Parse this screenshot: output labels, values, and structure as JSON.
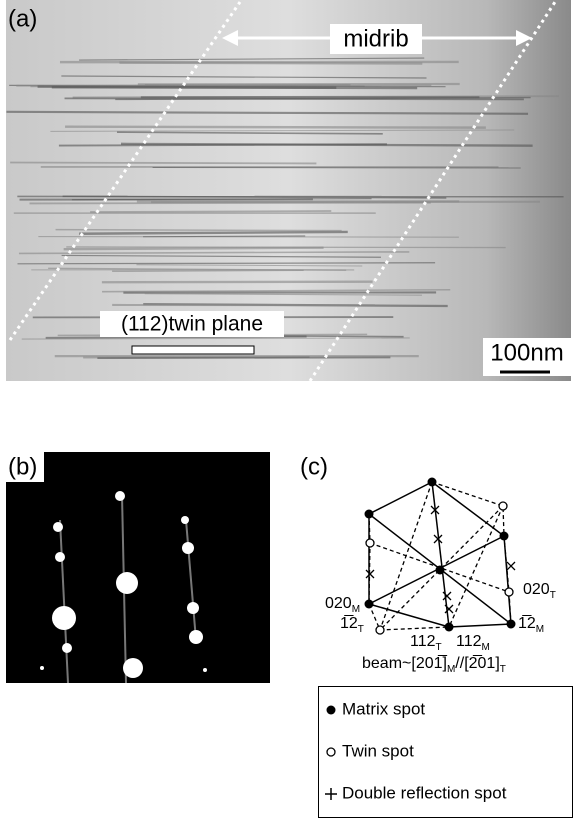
{
  "panel_a": {
    "label": "(a)",
    "midrib": "midrib",
    "twin_plane": "(112)twin plane",
    "scale_bar": "100nm"
  },
  "panel_b": {
    "label": "(b)"
  },
  "panel_c": {
    "label": "(c)",
    "spot_labels": [
      {
        "index": "020",
        "sub": "M"
      },
      {
        "index": "020",
        "sub": "T"
      },
      {
        "index": "1̅2",
        "sub": "T"
      },
      {
        "index": "1̅2",
        "sub": "M"
      },
      {
        "index": "112",
        "sub": "T"
      },
      {
        "index": "112",
        "sub": "M"
      }
    ],
    "beam": [
      "beam~[201̅]",
      "M",
      "//[2̅01]",
      "T"
    ],
    "legend": [
      "Matrix spot",
      "Twin spot",
      "Double reflection spot"
    ]
  }
}
